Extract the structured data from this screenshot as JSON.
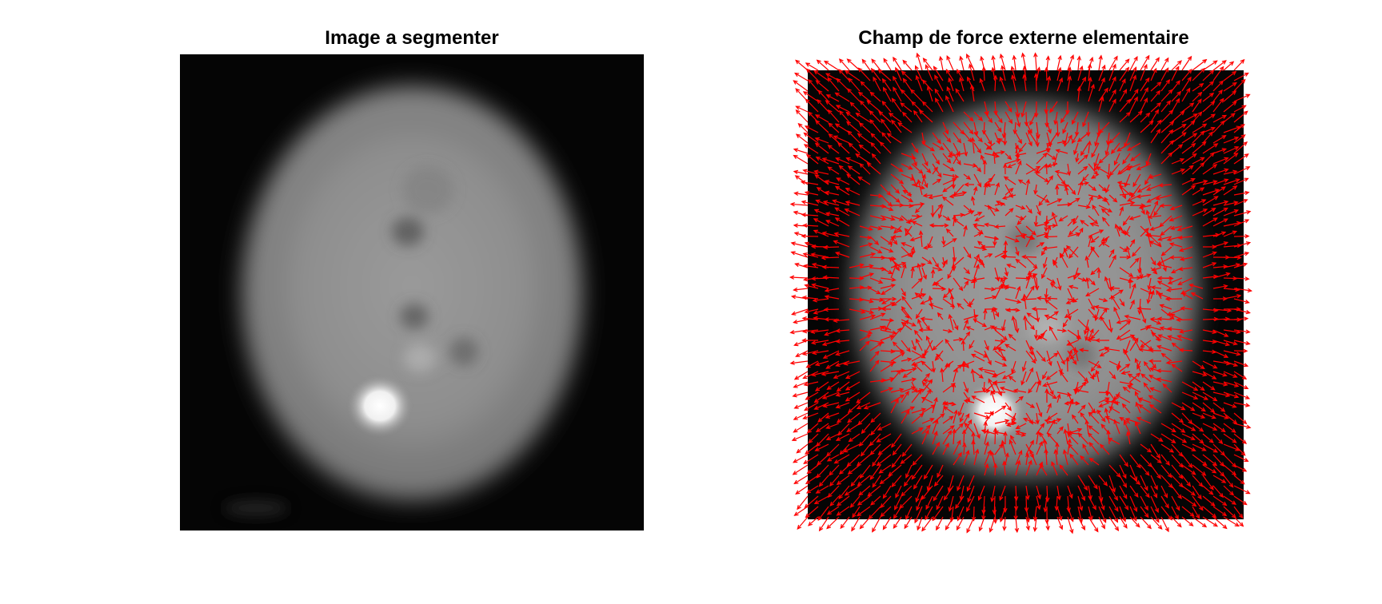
{
  "figure": {
    "panels": [
      {
        "title": "Image a segmenter",
        "content": "grayscale-brain-mri"
      },
      {
        "title": "Champ de force externe elementaire",
        "content": "grayscale-brain-mri-with-quiver-field"
      }
    ],
    "colors": {
      "background": "#ffffff",
      "arrow": "#ff0000",
      "image_dark": "#050505",
      "image_mid": "#8c8c8c",
      "image_bright": "#ffffff"
    }
  }
}
